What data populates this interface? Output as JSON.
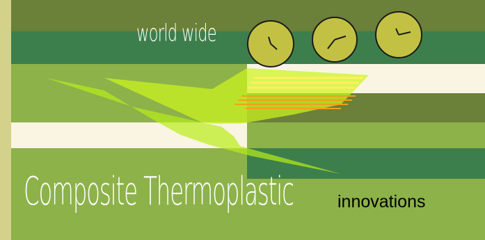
{
  "banner": {
    "tagline": "world wide",
    "headline_main": "Composite Thermoplastic",
    "headline_sub": "innovations"
  },
  "colors": {
    "frame": "#d4d18a",
    "olive_dark": "#6b8038",
    "olive_light": "#8db24a",
    "forest_green": "#3d7f4c",
    "cream": "#faf4e2",
    "clock_face": "#c3c144",
    "lime_shape": "#b8ec1a",
    "orange_lines": "#f2a11a",
    "yellow_lines": "#fff060"
  },
  "icons": [
    "clock-icon",
    "clock-icon",
    "clock-icon",
    "airplane-silhouette-icon"
  ]
}
